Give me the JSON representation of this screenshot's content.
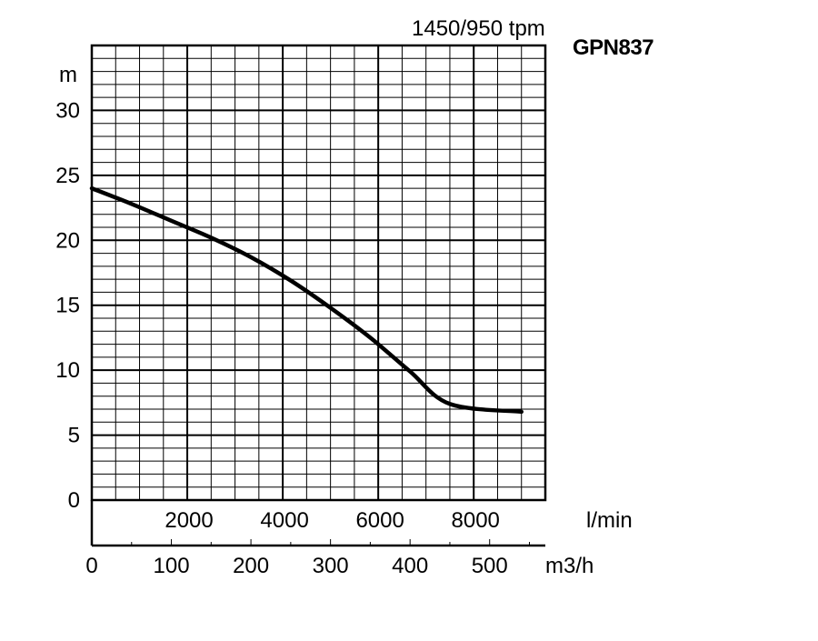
{
  "chart_data": {
    "type": "line",
    "speed_label": "1450/950 tpm",
    "model_label": "GPN837",
    "y_unit": "m",
    "x_unit_lmin": "l/min",
    "x_unit_m3h": "m3/h",
    "ylim": [
      0,
      35
    ],
    "xlim_m3h": [
      0,
      570
    ],
    "xlim_lmin": [
      0,
      9500
    ],
    "y_ticks": [
      "0",
      "5",
      "10",
      "15",
      "20",
      "25",
      "30"
    ],
    "x_ticks_lmin": [
      "2000",
      "4000",
      "6000",
      "8000"
    ],
    "x_ticks_m3h": [
      "0",
      "100",
      "200",
      "300",
      "400",
      "500"
    ],
    "grid": true,
    "series": [
      {
        "x_m3h": [
          0,
          50,
          100,
          150,
          200,
          250,
          300,
          350,
          400,
          450,
          540
        ],
        "y": [
          24.0,
          22.8,
          21.5,
          20.2,
          18.7,
          16.9,
          14.8,
          12.5,
          9.9,
          7.4,
          6.8
        ]
      }
    ]
  }
}
